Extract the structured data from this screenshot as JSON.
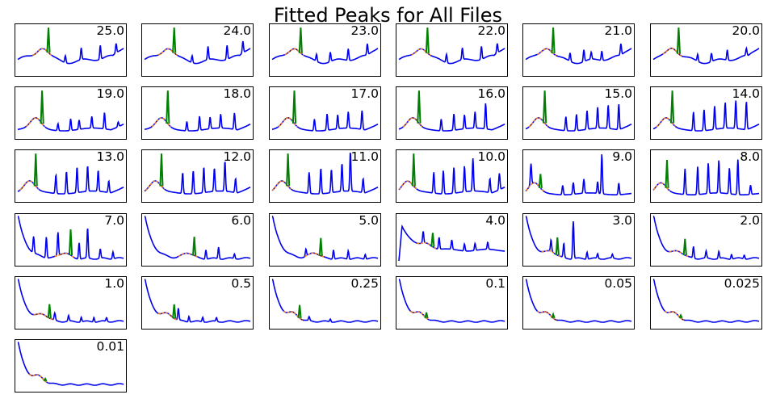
{
  "title": "Fitted Peaks for All Files",
  "colors": {
    "data": "#0000ee",
    "fit": "#ff7f0e",
    "peak": "#008000",
    "frame": "#000000"
  },
  "chart_data": {
    "type": "line",
    "title": "Fitted Peaks for All Files",
    "xlabel": "",
    "ylabel": "",
    "axes_ticks": "hidden",
    "grid": false,
    "legend": "none",
    "series_per_panel": [
      "data trace (blue)",
      "fitted curve (orange)",
      "fitted peak (green)"
    ],
    "panel_labels": [
      "25.0",
      "24.0",
      "23.0",
      "22.0",
      "21.0",
      "20.0",
      "19.0",
      "18.0",
      "17.0",
      "16.0",
      "15.0",
      "14.0",
      "13.0",
      "12.0",
      "11.0",
      "10.0",
      "9.0",
      "8.0",
      "7.0",
      "6.0",
      "5.0",
      "4.0",
      "3.0",
      "2.0",
      "1.0",
      "0.5",
      "0.25",
      "0.1",
      "0.05",
      "0.025",
      "0.01"
    ],
    "panels": [
      {
        "label": "25.0",
        "profile": "high",
        "green_peak": {
          "x": 0.29,
          "height": 0.95
        },
        "spikes": [
          [
            0.45,
            0.15
          ],
          [
            0.6,
            0.25
          ],
          [
            0.78,
            0.3
          ],
          [
            0.93,
            0.2
          ]
        ]
      },
      {
        "label": "24.0",
        "profile": "high",
        "green_peak": {
          "x": 0.28,
          "height": 0.95
        },
        "spikes": [
          [
            0.45,
            0.15
          ],
          [
            0.6,
            0.28
          ],
          [
            0.78,
            0.3
          ],
          [
            0.93,
            0.25
          ]
        ]
      },
      {
        "label": "23.0",
        "profile": "high",
        "green_peak": {
          "x": 0.27,
          "height": 0.95
        },
        "spikes": [
          [
            0.42,
            0.15
          ],
          [
            0.55,
            0.2
          ],
          [
            0.72,
            0.25
          ],
          [
            0.9,
            0.25
          ]
        ]
      },
      {
        "label": "22.0",
        "profile": "high",
        "green_peak": {
          "x": 0.27,
          "height": 0.95
        },
        "spikes": [
          [
            0.45,
            0.18
          ],
          [
            0.6,
            0.25
          ],
          [
            0.78,
            0.28
          ],
          [
            0.93,
            0.2
          ]
        ]
      },
      {
        "label": "21.0",
        "profile": "high",
        "green_peak": {
          "x": 0.26,
          "height": 0.95
        },
        "spikes": [
          [
            0.42,
            0.18
          ],
          [
            0.55,
            0.25
          ],
          [
            0.62,
            0.15
          ],
          [
            0.72,
            0.2
          ],
          [
            0.9,
            0.25
          ]
        ]
      },
      {
        "label": "20.0",
        "profile": "high",
        "green_peak": {
          "x": 0.24,
          "height": 0.95
        },
        "spikes": [
          [
            0.42,
            0.15
          ],
          [
            0.55,
            0.18
          ],
          [
            0.7,
            0.22
          ],
          [
            0.88,
            0.15
          ]
        ]
      },
      {
        "label": "19.0",
        "profile": "mid",
        "green_peak": {
          "x": 0.23,
          "height": 0.9
        },
        "spikes": [
          [
            0.38,
            0.15
          ],
          [
            0.5,
            0.25
          ],
          [
            0.58,
            0.2
          ],
          [
            0.7,
            0.25
          ],
          [
            0.82,
            0.35
          ],
          [
            0.95,
            0.1
          ]
        ]
      },
      {
        "label": "18.0",
        "profile": "mid",
        "green_peak": {
          "x": 0.22,
          "height": 0.9
        },
        "spikes": [
          [
            0.4,
            0.2
          ],
          [
            0.52,
            0.3
          ],
          [
            0.62,
            0.25
          ],
          [
            0.72,
            0.3
          ],
          [
            0.85,
            0.35
          ]
        ]
      },
      {
        "label": "17.0",
        "profile": "mid",
        "green_peak": {
          "x": 0.21,
          "height": 0.9
        },
        "spikes": [
          [
            0.4,
            0.25
          ],
          [
            0.52,
            0.35
          ],
          [
            0.62,
            0.3
          ],
          [
            0.72,
            0.35
          ],
          [
            0.85,
            0.4
          ]
        ]
      },
      {
        "label": "16.0",
        "profile": "mid",
        "green_peak": {
          "x": 0.19,
          "height": 0.9
        },
        "spikes": [
          [
            0.4,
            0.25
          ],
          [
            0.52,
            0.35
          ],
          [
            0.62,
            0.3
          ],
          [
            0.72,
            0.35
          ],
          [
            0.82,
            0.55
          ]
        ]
      },
      {
        "label": "15.0",
        "profile": "mid",
        "green_peak": {
          "x": 0.18,
          "height": 0.9
        },
        "spikes": [
          [
            0.38,
            0.3
          ],
          [
            0.48,
            0.35
          ],
          [
            0.58,
            0.4
          ],
          [
            0.68,
            0.45
          ],
          [
            0.78,
            0.5
          ],
          [
            0.88,
            0.55
          ]
        ]
      },
      {
        "label": "14.0",
        "profile": "mid",
        "green_peak": {
          "x": 0.18,
          "height": 0.9
        },
        "spikes": [
          [
            0.38,
            0.4
          ],
          [
            0.48,
            0.45
          ],
          [
            0.58,
            0.5
          ],
          [
            0.68,
            0.55
          ],
          [
            0.78,
            0.6
          ],
          [
            0.88,
            0.6
          ]
        ]
      },
      {
        "label": "13.0",
        "profile": "mid",
        "green_peak": {
          "x": 0.17,
          "height": 0.88
        },
        "spikes": [
          [
            0.36,
            0.4
          ],
          [
            0.46,
            0.48
          ],
          [
            0.56,
            0.55
          ],
          [
            0.66,
            0.55
          ],
          [
            0.76,
            0.45
          ],
          [
            0.86,
            0.25
          ]
        ]
      },
      {
        "label": "12.0",
        "profile": "mid",
        "green_peak": {
          "x": 0.16,
          "height": 0.88
        },
        "spikes": [
          [
            0.36,
            0.45
          ],
          [
            0.46,
            0.5
          ],
          [
            0.56,
            0.55
          ],
          [
            0.66,
            0.5
          ],
          [
            0.76,
            0.65
          ],
          [
            0.86,
            0.3
          ]
        ]
      },
      {
        "label": "11.0",
        "profile": "mid",
        "green_peak": {
          "x": 0.15,
          "height": 0.85
        },
        "spikes": [
          [
            0.35,
            0.45
          ],
          [
            0.46,
            0.55
          ],
          [
            0.56,
            0.5
          ],
          [
            0.66,
            0.6
          ],
          [
            0.74,
            0.85
          ],
          [
            0.86,
            0.3
          ]
        ]
      },
      {
        "label": "10.0",
        "profile": "mid",
        "green_peak": {
          "x": 0.14,
          "height": 0.8
        },
        "spikes": [
          [
            0.33,
            0.45
          ],
          [
            0.42,
            0.5
          ],
          [
            0.52,
            0.55
          ],
          [
            0.62,
            0.55
          ],
          [
            0.7,
            0.7
          ],
          [
            0.86,
            0.3
          ],
          [
            0.95,
            0.35
          ]
        ]
      },
      {
        "label": "9.0",
        "profile": "flat",
        "green_peak": {
          "x": 0.14,
          "height": 0.3
        },
        "spikes": [
          [
            0.05,
            0.45
          ],
          [
            0.35,
            0.2
          ],
          [
            0.45,
            0.25
          ],
          [
            0.55,
            0.3
          ],
          [
            0.68,
            0.25
          ],
          [
            0.72,
            0.85
          ],
          [
            0.88,
            0.25
          ]
        ]
      },
      {
        "label": "8.0",
        "profile": "flat",
        "green_peak": {
          "x": 0.13,
          "height": 0.6
        },
        "spikes": [
          [
            0.3,
            0.55
          ],
          [
            0.42,
            0.6
          ],
          [
            0.52,
            0.65
          ],
          [
            0.62,
            0.7
          ],
          [
            0.72,
            0.55
          ],
          [
            0.8,
            0.75
          ],
          [
            0.92,
            0.2
          ]
        ]
      },
      {
        "label": "7.0",
        "profile": "decay",
        "green_peak": {
          "x": 0.5,
          "height": 0.55
        },
        "spikes": [
          [
            0.15,
            0.35
          ],
          [
            0.27,
            0.45
          ],
          [
            0.38,
            0.5
          ],
          [
            0.58,
            0.35
          ],
          [
            0.66,
            0.65
          ],
          [
            0.78,
            0.2
          ],
          [
            0.9,
            0.15
          ]
        ]
      },
      {
        "label": "6.0",
        "profile": "decay",
        "green_peak": {
          "x": 0.47,
          "height": 0.4
        },
        "spikes": [
          [
            0.58,
            0.2
          ],
          [
            0.7,
            0.25
          ],
          [
            0.85,
            0.1
          ]
        ]
      },
      {
        "label": "5.0",
        "profile": "decay",
        "green_peak": {
          "x": 0.46,
          "height": 0.38
        },
        "spikes": [
          [
            0.32,
            0.15
          ],
          [
            0.58,
            0.2
          ],
          [
            0.72,
            0.18
          ],
          [
            0.88,
            0.1
          ]
        ]
      },
      {
        "label": "4.0",
        "profile": "decay4",
        "green_peak": {
          "x": 0.32,
          "height": 0.3
        },
        "spikes": [
          [
            0.23,
            0.25
          ],
          [
            0.38,
            0.25
          ],
          [
            0.5,
            0.2
          ],
          [
            0.62,
            0.15
          ],
          [
            0.72,
            0.15
          ],
          [
            0.84,
            0.15
          ]
        ]
      },
      {
        "label": "3.0",
        "profile": "decay",
        "green_peak": {
          "x": 0.3,
          "height": 0.38
        },
        "spikes": [
          [
            0.24,
            0.25
          ],
          [
            0.36,
            0.3
          ],
          [
            0.45,
            0.8
          ],
          [
            0.58,
            0.15
          ],
          [
            0.68,
            0.1
          ],
          [
            0.82,
            0.08
          ]
        ]
      },
      {
        "label": "2.0",
        "profile": "decay",
        "green_peak": {
          "x": 0.3,
          "height": 0.35
        },
        "spikes": [
          [
            0.38,
            0.25
          ],
          [
            0.5,
            0.15
          ],
          [
            0.62,
            0.15
          ],
          [
            0.74,
            0.1
          ],
          [
            0.86,
            0.08
          ]
        ]
      },
      {
        "label": "1.0",
        "profile": "decay",
        "green_peak": {
          "x": 0.3,
          "height": 0.3
        },
        "spikes": [
          [
            0.35,
            0.15
          ],
          [
            0.48,
            0.12
          ],
          [
            0.6,
            0.1
          ],
          [
            0.72,
            0.1
          ],
          [
            0.84,
            0.08
          ]
        ]
      },
      {
        "label": "0.5",
        "profile": "decay",
        "green_peak": {
          "x": 0.28,
          "height": 0.3
        },
        "spikes": [
          [
            0.32,
            0.25
          ],
          [
            0.42,
            0.12
          ],
          [
            0.55,
            0.1
          ],
          [
            0.68,
            0.08
          ]
        ]
      },
      {
        "label": "0.25",
        "profile": "decay",
        "green_peak": {
          "x": 0.26,
          "height": 0.28
        },
        "spikes": [
          [
            0.35,
            0.08
          ],
          [
            0.55,
            0.06
          ]
        ]
      },
      {
        "label": "0.1",
        "profile": "decay",
        "green_peak": {
          "x": 0.26,
          "height": 0.12
        },
        "spikes": []
      },
      {
        "label": "0.05",
        "profile": "decay",
        "green_peak": {
          "x": 0.26,
          "height": 0.08
        },
        "spikes": []
      },
      {
        "label": "0.025",
        "profile": "decay",
        "green_peak": {
          "x": 0.26,
          "height": 0.06
        },
        "spikes": []
      },
      {
        "label": "0.01",
        "profile": "decay",
        "green_peak": {
          "x": 0.26,
          "height": 0.05
        },
        "spikes": []
      }
    ]
  }
}
